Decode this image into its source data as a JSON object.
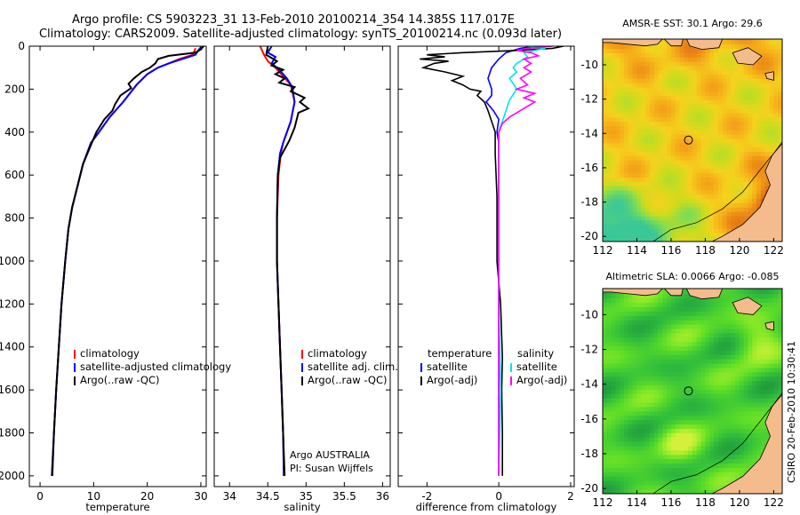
{
  "header": {
    "line1": "Argo profile: CS 5903223_31 13-Feb-2010 20100214_354 14.385S 117.017E",
    "line2": "Climatology: CARS2009. Satellite-adjusted climatology: synTS_20100214.nc (0.093d later)"
  },
  "colors": {
    "climatology": "#ff0000",
    "satellite": "#0000ff",
    "argo": "#000000",
    "salinity_satellite": "#00e5ee",
    "salinity_argo": "#ff00ff",
    "land": "#f4bb8c"
  },
  "attribution": {
    "program": "Argo AUSTRALIA",
    "pi": "PI: Susan Wijffels",
    "footer": "CSIRO  20-Feb-2010 10:30:41"
  },
  "chart_data": [
    {
      "id": "temperature",
      "type": "line",
      "xlabel": "temperature",
      "xlim": [
        -2,
        31
      ],
      "xticks": [
        0,
        10,
        20,
        30
      ],
      "ylim": [
        0,
        2050
      ],
      "yticks": [
        0,
        200,
        400,
        600,
        800,
        1000,
        1200,
        1400,
        1600,
        1800,
        2000
      ],
      "y_inverted": true,
      "legend": [
        "climatology",
        "satellite-adjusted climatology",
        "Argo(..raw -QC)"
      ],
      "series": [
        {
          "name": "climatology",
          "color": "#ff0000",
          "points": [
            [
              29,
              10
            ],
            [
              28.7,
              30
            ],
            [
              28.5,
              40
            ],
            [
              26,
              60
            ],
            [
              24,
              80
            ],
            [
              22,
              100
            ],
            [
              20,
              130
            ],
            [
              18,
              180
            ],
            [
              15.5,
              260
            ],
            [
              13,
              330
            ],
            [
              11,
              400
            ],
            [
              9.5,
              450
            ],
            [
              8,
              550
            ],
            [
              7,
              650
            ],
            [
              6,
              750
            ],
            [
              5.3,
              850
            ],
            [
              4.7,
              1000
            ],
            [
              4,
              1200
            ],
            [
              3.5,
              1400
            ],
            [
              3,
              1600
            ],
            [
              2.6,
              1800
            ],
            [
              2.2,
              2000
            ]
          ]
        },
        {
          "name": "satellite-adjusted climatology",
          "color": "#0000ff",
          "points": [
            [
              30,
              5
            ],
            [
              29.5,
              20
            ],
            [
              29,
              40
            ],
            [
              26.5,
              60
            ],
            [
              24,
              80
            ],
            [
              22,
              100
            ],
            [
              20,
              130
            ],
            [
              18,
              180
            ],
            [
              15.5,
              260
            ],
            [
              13,
              330
            ],
            [
              11,
              400
            ],
            [
              9.5,
              450
            ],
            [
              8,
              550
            ],
            [
              7,
              650
            ],
            [
              6,
              750
            ],
            [
              5.3,
              850
            ],
            [
              4.7,
              1000
            ],
            [
              4,
              1200
            ],
            [
              3.5,
              1400
            ],
            [
              3,
              1600
            ],
            [
              2.6,
              1800
            ],
            [
              2.2,
              2000
            ]
          ]
        },
        {
          "name": "Argo(..raw -QC)",
          "color": "#000000",
          "points": [
            [
              30.5,
              0
            ],
            [
              30,
              15
            ],
            [
              29,
              30
            ],
            [
              24,
              45
            ],
            [
              22,
              60
            ],
            [
              21.5,
              80
            ],
            [
              20.5,
              100
            ],
            [
              19,
              120
            ],
            [
              17.5,
              150
            ],
            [
              16.5,
              175
            ],
            [
              17,
              195
            ],
            [
              15,
              230
            ],
            [
              14,
              270
            ],
            [
              13.5,
              300
            ],
            [
              12,
              340
            ],
            [
              10.5,
              400
            ],
            [
              9.5,
              460
            ],
            [
              8,
              550
            ],
            [
              7,
              650
            ],
            [
              6,
              750
            ],
            [
              5.3,
              850
            ],
            [
              4.7,
              1000
            ],
            [
              4,
              1200
            ],
            [
              3.5,
              1400
            ],
            [
              3,
              1600
            ],
            [
              2.6,
              1800
            ],
            [
              2.3,
              2000
            ]
          ]
        }
      ]
    },
    {
      "id": "salinity",
      "type": "line",
      "xlabel": "salinity",
      "xlim": [
        33.8,
        36.1
      ],
      "xticks": [
        34,
        34.5,
        35,
        35.5,
        36
      ],
      "xtick_labels": [
        "34",
        "34.5",
        "35",
        "35.5",
        "36"
      ],
      "ylim": [
        0,
        2050
      ],
      "y_inverted": true,
      "legend": [
        "climatology",
        "satellite adj. clim.",
        "Argo(..raw -QC)"
      ],
      "series": [
        {
          "name": "climatology",
          "color": "#ff0000",
          "points": [
            [
              34.4,
              0
            ],
            [
              34.45,
              40
            ],
            [
              34.5,
              70
            ],
            [
              34.6,
              100
            ],
            [
              34.7,
              140
            ],
            [
              34.8,
              180
            ],
            [
              34.85,
              260
            ],
            [
              34.8,
              350
            ],
            [
              34.7,
              450
            ],
            [
              34.67,
              500
            ],
            [
              34.64,
              600
            ],
            [
              34.62,
              800
            ],
            [
              34.62,
              1000
            ],
            [
              34.64,
              1200
            ],
            [
              34.66,
              1400
            ],
            [
              34.68,
              1600
            ],
            [
              34.7,
              1800
            ],
            [
              34.71,
              2000
            ]
          ]
        },
        {
          "name": "satellite adj. clim.",
          "color": "#0000ff",
          "points": [
            [
              34.55,
              0
            ],
            [
              34.5,
              30
            ],
            [
              34.6,
              50
            ],
            [
              34.55,
              80
            ],
            [
              34.65,
              110
            ],
            [
              34.75,
              150
            ],
            [
              34.82,
              190
            ],
            [
              34.85,
              260
            ],
            [
              34.8,
              350
            ],
            [
              34.7,
              450
            ],
            [
              34.66,
              500
            ],
            [
              34.63,
              600
            ],
            [
              34.62,
              800
            ],
            [
              34.62,
              1000
            ],
            [
              34.64,
              1200
            ],
            [
              34.66,
              1400
            ],
            [
              34.68,
              1600
            ],
            [
              34.7,
              1800
            ],
            [
              34.71,
              2000
            ]
          ]
        },
        {
          "name": "Argo(..raw -QC)",
          "color": "#000000",
          "points": [
            [
              34.5,
              0
            ],
            [
              34.48,
              40
            ],
            [
              34.62,
              70
            ],
            [
              34.55,
              90
            ],
            [
              34.7,
              110
            ],
            [
              34.6,
              130
            ],
            [
              34.72,
              150
            ],
            [
              34.65,
              170
            ],
            [
              34.85,
              190
            ],
            [
              34.8,
              210
            ],
            [
              34.98,
              240
            ],
            [
              34.92,
              260
            ],
            [
              35.03,
              290
            ],
            [
              34.9,
              310
            ],
            [
              34.85,
              380
            ],
            [
              34.78,
              440
            ],
            [
              34.72,
              480
            ],
            [
              34.66,
              520
            ],
            [
              34.63,
              600
            ],
            [
              34.62,
              800
            ],
            [
              34.62,
              1000
            ],
            [
              34.64,
              1200
            ],
            [
              34.66,
              1400
            ],
            [
              34.68,
              1600
            ],
            [
              34.7,
              1800
            ],
            [
              34.72,
              2000
            ]
          ]
        }
      ]
    },
    {
      "id": "difference",
      "type": "line",
      "xlabel": "difference from climatology",
      "xlim": [
        -2.8,
        2.1
      ],
      "xticks": [
        -2,
        0,
        2
      ],
      "ylim": [
        0,
        2050
      ],
      "y_inverted": true,
      "legend_headers": [
        "temperature",
        "salinity"
      ],
      "legend": [
        "satellite",
        "Argo(-adj)",
        "satellite",
        "Argo(-adj)"
      ],
      "series": [
        {
          "name": "temperature satellite",
          "color": "#0000ff",
          "points": [
            [
              1,
              0
            ],
            [
              0.6,
              10
            ],
            [
              0.2,
              30
            ],
            [
              0,
              60
            ],
            [
              -0.2,
              100
            ],
            [
              -0.3,
              150
            ],
            [
              -0.2,
              200
            ],
            [
              -0.2,
              230
            ],
            [
              -0.35,
              260
            ],
            [
              -0.15,
              300
            ],
            [
              0,
              340
            ],
            [
              -0.05,
              400
            ],
            [
              0,
              450
            ],
            [
              0,
              500
            ],
            [
              0,
              800
            ],
            [
              0,
              1200
            ],
            [
              0,
              1600
            ],
            [
              0,
              2000
            ]
          ]
        },
        {
          "name": "temperature Argo(-adj)",
          "color": "#000000",
          "points": [
            [
              1.8,
              0
            ],
            [
              1.5,
              10
            ],
            [
              0.5,
              20
            ],
            [
              -1,
              30
            ],
            [
              -2,
              40
            ],
            [
              -1.5,
              50
            ],
            [
              -2.2,
              60
            ],
            [
              -1.4,
              70
            ],
            [
              -1.8,
              80
            ],
            [
              -2.1,
              100
            ],
            [
              -1.5,
              120
            ],
            [
              -1,
              140
            ],
            [
              -1.3,
              160
            ],
            [
              -1,
              180
            ],
            [
              -0.8,
              200
            ],
            [
              -0.5,
              210
            ],
            [
              -0.6,
              230
            ],
            [
              -0.4,
              260
            ],
            [
              -0.3,
              300
            ],
            [
              -0.2,
              350
            ],
            [
              -0.1,
              400
            ],
            [
              -0.1,
              500
            ],
            [
              -0.05,
              700
            ],
            [
              -0.05,
              1000
            ],
            [
              0.05,
              1200
            ],
            [
              0.1,
              1450
            ],
            [
              0.08,
              1600
            ],
            [
              0.1,
              1800
            ],
            [
              0.1,
              2000
            ]
          ]
        },
        {
          "name": "salinity satellite",
          "color": "#00e5ee",
          "points": [
            [
              0.8,
              0
            ],
            [
              1.3,
              10
            ],
            [
              0.7,
              30
            ],
            [
              0.8,
              50
            ],
            [
              0.5,
              80
            ],
            [
              0.4,
              100
            ],
            [
              0.5,
              120
            ],
            [
              0.3,
              150
            ],
            [
              0.5,
              200
            ],
            [
              0.3,
              250
            ],
            [
              0.2,
              300
            ],
            [
              0.1,
              350
            ],
            [
              0,
              400
            ],
            [
              0,
              500
            ],
            [
              0,
              800
            ],
            [
              0,
              1200
            ],
            [
              0.05,
              1600
            ],
            [
              0,
              2000
            ]
          ]
        },
        {
          "name": "salinity Argo(-adj)",
          "color": "#ff00ff",
          "points": [
            [
              1.5,
              0
            ],
            [
              0.8,
              10
            ],
            [
              0.5,
              20
            ],
            [
              0.9,
              30
            ],
            [
              1.1,
              45
            ],
            [
              0.7,
              60
            ],
            [
              0.9,
              80
            ],
            [
              0.7,
              100
            ],
            [
              0.9,
              120
            ],
            [
              0.6,
              150
            ],
            [
              0.8,
              180
            ],
            [
              0.5,
              200
            ],
            [
              1,
              220
            ],
            [
              0.7,
              240
            ],
            [
              1,
              260
            ],
            [
              0.6,
              300
            ],
            [
              0.3,
              330
            ],
            [
              0.1,
              360
            ],
            [
              0,
              400
            ],
            [
              0,
              500
            ],
            [
              0,
              800
            ],
            [
              0,
              1200
            ],
            [
              0,
              1600
            ],
            [
              0,
              2000
            ]
          ]
        }
      ]
    },
    {
      "id": "sst_map",
      "type": "heatmap",
      "title": "AMSR-E SST: 30.1  Argo: 29.6",
      "xlim": [
        112,
        122.5
      ],
      "ylim": [
        -20.3,
        -8.5
      ],
      "xticks": [
        112,
        114,
        116,
        118,
        120,
        122
      ],
      "yticks": [
        -10,
        -12,
        -14,
        -16,
        -18,
        -20
      ],
      "marker": {
        "lon": 117.017,
        "lat": -14.385
      }
    },
    {
      "id": "sla_map",
      "type": "heatmap",
      "title": "Altimetric SLA: 0.0066  Argo: -0.085",
      "xlim": [
        112,
        122.5
      ],
      "ylim": [
        -20.3,
        -8.5
      ],
      "xticks": [
        112,
        114,
        116,
        118,
        120,
        122
      ],
      "yticks": [
        -10,
        -12,
        -14,
        -16,
        -18,
        -20
      ],
      "marker": {
        "lon": 117.017,
        "lat": -14.385
      }
    }
  ]
}
